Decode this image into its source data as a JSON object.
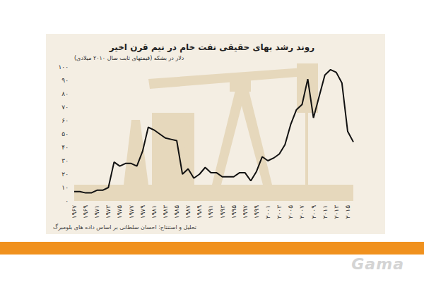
{
  "chart_data": {
    "type": "line",
    "title": "روند رشد بهای حقیقی نفت خام در نیم قرن اخیر",
    "ylabel": "دلار در بشکه (قیمتهای ثابت سال ۲۰۱۰ میلادی)",
    "annotations": [
      "تحلیل و استنتاج: احسان سلطانی بر اساس داده های بلومبرگ"
    ],
    "categories": [
      "۱۹۶۷",
      null,
      "۱۹۶۹",
      null,
      "۱۹۷۱",
      null,
      "۱۹۷۳",
      null,
      "۱۹۷۵",
      null,
      "۱۹۷۷",
      null,
      "۱۹۷۹",
      null,
      "۱۹۸۱",
      null,
      "۱۹۸۳",
      null,
      "۱۹۸۵",
      null,
      "۱۹۸۷",
      null,
      "۱۹۸۹",
      null,
      "۱۹۹۱",
      null,
      "۱۹۹۳",
      null,
      "۱۹۹۵",
      null,
      "۱۹۹۷",
      null,
      "۱۹۹۹",
      null,
      "۲۰۰۱",
      null,
      "۲۰۰۳",
      null,
      "۲۰۰۵",
      null,
      "۲۰۰۷",
      null,
      "۲۰۰۹",
      null,
      "۲۰۱۱",
      null,
      "۲۰۱۳",
      null,
      "۲۰۱۵",
      null
    ],
    "values": [
      7,
      7,
      6,
      6,
      8,
      8,
      10,
      29,
      26,
      28,
      28,
      26,
      37,
      55,
      53,
      50,
      47,
      46,
      45,
      20,
      24,
      17,
      20,
      25,
      21,
      21,
      18,
      18,
      18,
      21,
      21,
      15,
      22,
      33,
      30,
      32,
      35,
      42,
      57,
      68,
      72,
      91,
      62,
      78,
      94,
      98,
      96,
      88,
      52,
      44
    ],
    "color": "#111111",
    "marker": "none",
    "line_style": "solid",
    "ylim": [
      0,
      100
    ],
    "yticks": [
      {
        "value": 0,
        "label": "۰"
      },
      {
        "value": 10,
        "label": "۱۰"
      },
      {
        "value": 20,
        "label": "۲۰"
      },
      {
        "value": 30,
        "label": "۳۰"
      },
      {
        "value": 40,
        "label": "۴۰"
      },
      {
        "value": 50,
        "label": "۵۰"
      },
      {
        "value": 60,
        "label": "۶۰"
      },
      {
        "value": 70,
        "label": "۷۰"
      },
      {
        "value": 80,
        "label": "۸۰"
      },
      {
        "value": 90,
        "label": "۹۰"
      },
      {
        "value": 100,
        "label": "۱۰۰"
      }
    ],
    "grid": false
  },
  "logo": "Gama"
}
